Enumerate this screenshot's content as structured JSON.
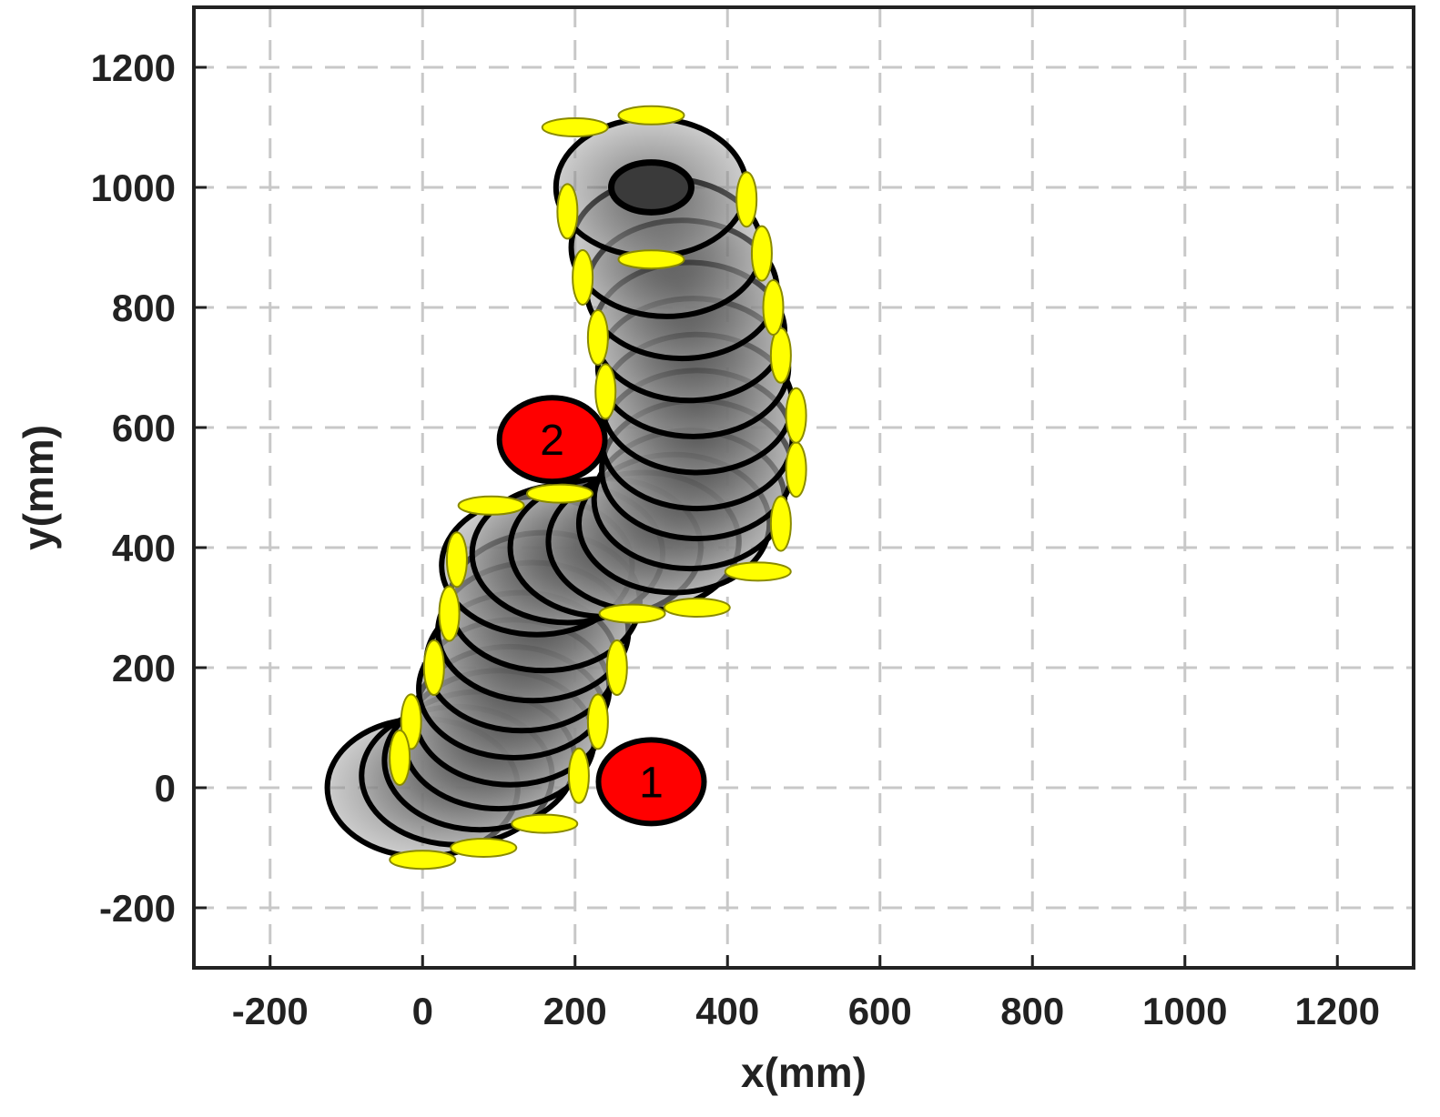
{
  "chart_data": {
    "type": "scatter",
    "xlabel": "x(mm)",
    "ylabel": "y(mm)",
    "xlim": [
      -300,
      1300
    ],
    "ylim": [
      -300,
      1300
    ],
    "xticks": [
      -200,
      0,
      200,
      400,
      600,
      800,
      1000,
      1200
    ],
    "yticks": [
      -200,
      0,
      200,
      400,
      600,
      800,
      1000,
      1200
    ],
    "xtick_labels": [
      "-200",
      "0",
      "200",
      "400",
      "600",
      "800",
      "1000",
      "1200"
    ],
    "ytick_labels": [
      "-200",
      "0",
      "200",
      "400",
      "600",
      "800",
      "1000",
      "1200"
    ],
    "grid": true,
    "grid_style": "dashed",
    "colors": {
      "grid": "#c8c8c8",
      "disc_fill": "#9a9a9a",
      "disc_core": "#3a3a3a",
      "disc_edge": "#000000",
      "foot": "#ffff00",
      "foot_edge": "#8a8a00",
      "marker": "#ff0000",
      "axes": "#222222"
    },
    "footprint_radius": {
      "x": 125,
      "y": 115
    },
    "trajectory": [
      {
        "x": 0,
        "y": 0
      },
      {
        "x": 45,
        "y": 20
      },
      {
        "x": 75,
        "y": 45
      },
      {
        "x": 100,
        "y": 80
      },
      {
        "x": 115,
        "y": 120
      },
      {
        "x": 120,
        "y": 165
      },
      {
        "x": 130,
        "y": 210
      },
      {
        "x": 145,
        "y": 260
      },
      {
        "x": 160,
        "y": 310
      },
      {
        "x": 150,
        "y": 370
      },
      {
        "x": 190,
        "y": 390
      },
      {
        "x": 240,
        "y": 400
      },
      {
        "x": 290,
        "y": 410
      },
      {
        "x": 330,
        "y": 440
      },
      {
        "x": 350,
        "y": 480
      },
      {
        "x": 360,
        "y": 530
      },
      {
        "x": 360,
        "y": 580
      },
      {
        "x": 360,
        "y": 640
      },
      {
        "x": 355,
        "y": 700
      },
      {
        "x": 350,
        "y": 760
      },
      {
        "x": 340,
        "y": 830
      },
      {
        "x": 320,
        "y": 900
      },
      {
        "x": 300,
        "y": 1000
      }
    ],
    "feet": [
      {
        "x": 0,
        "y": -120,
        "axis": "h"
      },
      {
        "x": 80,
        "y": -100,
        "axis": "h"
      },
      {
        "x": 160,
        "y": -60,
        "axis": "h"
      },
      {
        "x": 205,
        "y": 20,
        "axis": "v"
      },
      {
        "x": 230,
        "y": 110,
        "axis": "v"
      },
      {
        "x": 255,
        "y": 200,
        "axis": "v"
      },
      {
        "x": 275,
        "y": 290,
        "axis": "h"
      },
      {
        "x": 360,
        "y": 300,
        "axis": "h"
      },
      {
        "x": 440,
        "y": 360,
        "axis": "h"
      },
      {
        "x": 470,
        "y": 440,
        "axis": "v"
      },
      {
        "x": 490,
        "y": 530,
        "axis": "v"
      },
      {
        "x": 490,
        "y": 620,
        "axis": "v"
      },
      {
        "x": 470,
        "y": 720,
        "axis": "v"
      },
      {
        "x": 460,
        "y": 800,
        "axis": "v"
      },
      {
        "x": 445,
        "y": 890,
        "axis": "v"
      },
      {
        "x": 425,
        "y": 980,
        "axis": "v"
      },
      {
        "x": 300,
        "y": 1120,
        "axis": "h"
      },
      {
        "x": 200,
        "y": 1100,
        "axis": "h"
      },
      {
        "x": 190,
        "y": 960,
        "axis": "v"
      },
      {
        "x": 210,
        "y": 850,
        "axis": "v"
      },
      {
        "x": 230,
        "y": 750,
        "axis": "v"
      },
      {
        "x": 240,
        "y": 660,
        "axis": "v"
      },
      {
        "x": 180,
        "y": 490,
        "axis": "h"
      },
      {
        "x": 90,
        "y": 470,
        "axis": "h"
      },
      {
        "x": 45,
        "y": 380,
        "axis": "v"
      },
      {
        "x": 35,
        "y": 290,
        "axis": "v"
      },
      {
        "x": 15,
        "y": 200,
        "axis": "v"
      },
      {
        "x": -15,
        "y": 110,
        "axis": "v"
      },
      {
        "x": -30,
        "y": 50,
        "axis": "v"
      },
      {
        "x": 300,
        "y": 880,
        "axis": "h"
      }
    ],
    "markers": [
      {
        "label": "1",
        "x": 300,
        "y": 10
      },
      {
        "label": "2",
        "x": 170,
        "y": 580
      }
    ]
  }
}
